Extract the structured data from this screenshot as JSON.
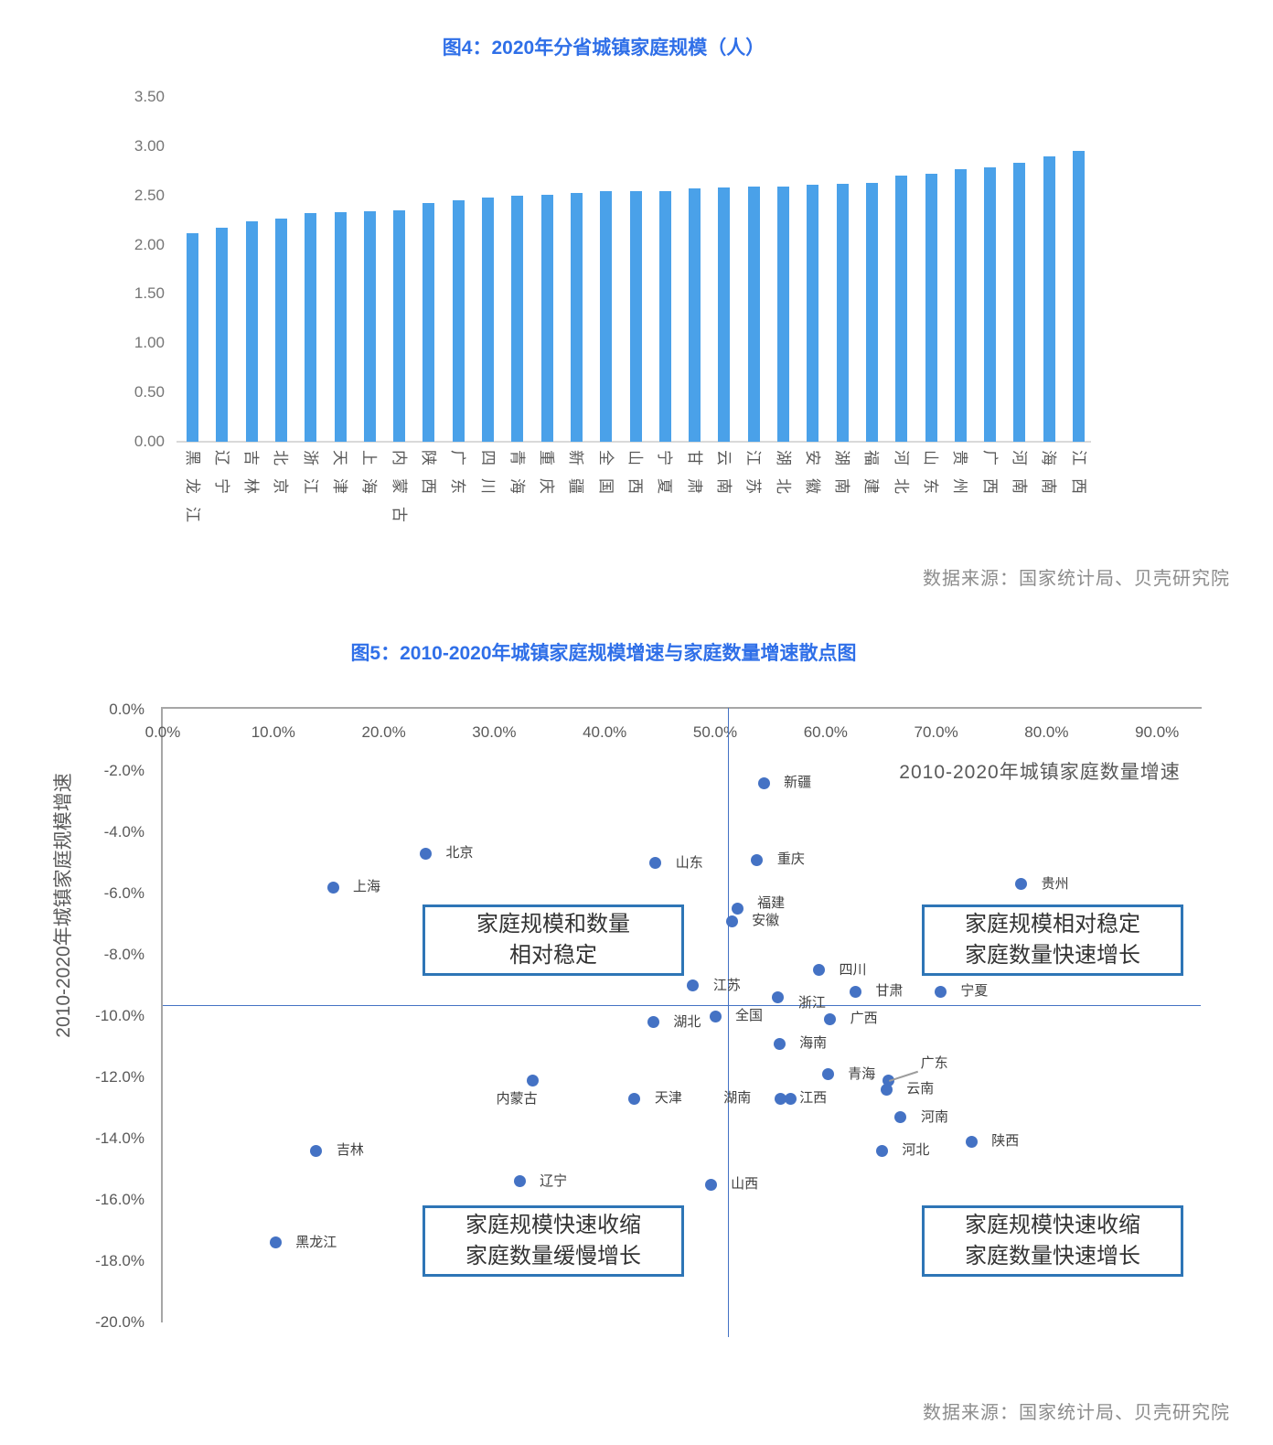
{
  "page": {
    "background": "#FFFFFF"
  },
  "chart_data": [
    {
      "id": "fig4",
      "type": "bar",
      "title": "图4：2020年分省城镇家庭规模（人）",
      "source": "数据来源：国家统计局、贝壳研究院",
      "bar_color": "#4AA1E9",
      "grid": false,
      "ylim": [
        0,
        3.5
      ],
      "yticks": [
        {
          "label": "3.50",
          "value": 3.5
        },
        {
          "label": "3.00",
          "value": 3.0
        },
        {
          "label": "2.50",
          "value": 2.5
        },
        {
          "label": "2.00",
          "value": 2.0
        },
        {
          "label": "1.50",
          "value": 1.5
        },
        {
          "label": "1.00",
          "value": 1.0
        },
        {
          "label": "0.50",
          "value": 0.5
        },
        {
          "label": "0.00",
          "value": 0.0
        }
      ],
      "categories": [
        "黑龙江",
        "辽宁",
        "吉林",
        "北京",
        "浙江",
        "天津",
        "上海",
        "内蒙古",
        "陕西",
        "广东",
        "四川",
        "青海",
        "重庆",
        "新疆",
        "全国",
        "山西",
        "宁夏",
        "甘肃",
        "云南",
        "江苏",
        "湖北",
        "安徽",
        "湖南",
        "福建",
        "河北",
        "山东",
        "贵州",
        "广西",
        "河南",
        "海南",
        "江西"
      ],
      "values": [
        2.12,
        2.17,
        2.24,
        2.27,
        2.32,
        2.33,
        2.34,
        2.35,
        2.42,
        2.45,
        2.48,
        2.5,
        2.51,
        2.53,
        2.54,
        2.54,
        2.54,
        2.57,
        2.58,
        2.59,
        2.59,
        2.61,
        2.62,
        2.63,
        2.7,
        2.72,
        2.77,
        2.79,
        2.83,
        2.9,
        2.95
      ]
    },
    {
      "id": "fig5",
      "type": "scatter",
      "title": "图5：2010-2020年城镇家庭规模增速与家庭数量增速散点图",
      "source": "数据来源：国家统计局、贝壳研究院",
      "xlabel": "2010-2020年城镇家庭数量增速",
      "ylabel": "2010-2020年城镇家庭规模增速",
      "point_color": "#4472C4",
      "box_border_color": "#2E75B6",
      "grid": false,
      "xlim": [
        0,
        94
      ],
      "ylim": [
        -20.5,
        0
      ],
      "xticks": [
        {
          "label": "0.0%",
          "value": 0
        },
        {
          "label": "10.0%",
          "value": 10
        },
        {
          "label": "20.0%",
          "value": 20
        },
        {
          "label": "30.0%",
          "value": 30
        },
        {
          "label": "40.0%",
          "value": 40
        },
        {
          "label": "50.0%",
          "value": 50
        },
        {
          "label": "60.0%",
          "value": 60
        },
        {
          "label": "70.0%",
          "value": 70
        },
        {
          "label": "80.0%",
          "value": 80
        },
        {
          "label": "90.0%",
          "value": 90
        }
      ],
      "yticks": [
        {
          "label": "0.0%",
          "value": 0
        },
        {
          "label": "-2.0%",
          "value": -2
        },
        {
          "label": "-4.0%",
          "value": -4
        },
        {
          "label": "-6.0%",
          "value": -6
        },
        {
          "label": "-8.0%",
          "value": -8
        },
        {
          "label": "-10.0%",
          "value": -10
        },
        {
          "label": "-12.0%",
          "value": -12
        },
        {
          "label": "-14.0%",
          "value": -14
        },
        {
          "label": "-16.0%",
          "value": -16
        },
        {
          "label": "-18.0%",
          "value": -18
        },
        {
          "label": "-20.0%",
          "value": -20
        }
      ],
      "reference_lines": {
        "vertical_x": 51.2,
        "horizontal_y": -9.65
      },
      "points": [
        {
          "name": "新疆",
          "x": 54.4,
          "y": -2.4
        },
        {
          "name": "北京",
          "x": 23.8,
          "y": -4.7
        },
        {
          "name": "重庆",
          "x": 53.8,
          "y": -4.9
        },
        {
          "name": "山东",
          "x": 44.6,
          "y": -5.0
        },
        {
          "name": "贵州",
          "x": 77.7,
          "y": -5.7
        },
        {
          "name": "上海",
          "x": 15.4,
          "y": -5.8
        },
        {
          "name": "福建",
          "x": 52.0,
          "y": -6.5,
          "label_pos": "right-up"
        },
        {
          "name": "安徽",
          "x": 51.5,
          "y": -6.9
        },
        {
          "name": "四川",
          "x": 59.4,
          "y": -8.5
        },
        {
          "name": "江苏",
          "x": 48.0,
          "y": -9.0
        },
        {
          "name": "甘肃",
          "x": 62.7,
          "y": -9.2
        },
        {
          "name": "宁夏",
          "x": 70.4,
          "y": -9.2
        },
        {
          "name": "浙江",
          "x": 55.7,
          "y": -9.4,
          "label_pos": "right-down"
        },
        {
          "name": "全国",
          "x": 50.0,
          "y": -10.0
        },
        {
          "name": "广西",
          "x": 60.4,
          "y": -10.1
        },
        {
          "name": "湖北",
          "x": 44.4,
          "y": -10.2
        },
        {
          "name": "海南",
          "x": 55.8,
          "y": -10.9
        },
        {
          "name": "青海",
          "x": 60.2,
          "y": -11.9
        },
        {
          "name": "内蒙古",
          "x": 33.5,
          "y": -12.1,
          "label_pos": "below-left"
        },
        {
          "name": "广东",
          "x": 65.7,
          "y": -12.1,
          "label_pos": "callout"
        },
        {
          "name": "云南",
          "x": 65.5,
          "y": -12.4
        },
        {
          "name": "天津",
          "x": 42.7,
          "y": -12.7
        },
        {
          "name": "湖南",
          "x": 55.9,
          "y": -12.7,
          "label_pos": "left"
        },
        {
          "name": "江西",
          "x": 56.8,
          "y": -12.7,
          "label_pos": "right-tight"
        },
        {
          "name": "河南",
          "x": 66.8,
          "y": -13.3
        },
        {
          "name": "陕西",
          "x": 73.2,
          "y": -14.1
        },
        {
          "name": "河北",
          "x": 65.1,
          "y": -14.4
        },
        {
          "name": "吉林",
          "x": 13.9,
          "y": -14.4
        },
        {
          "name": "辽宁",
          "x": 32.3,
          "y": -15.4
        },
        {
          "name": "山西",
          "x": 49.6,
          "y": -15.5
        },
        {
          "name": "黑龙江",
          "x": 10.2,
          "y": -17.4
        }
      ],
      "quadrant_labels": [
        {
          "position": "top-left",
          "lines": [
            "家庭规模和数量",
            "相对稳定"
          ]
        },
        {
          "position": "top-right",
          "lines": [
            "家庭规模相对稳定",
            "家庭数量快速增长"
          ]
        },
        {
          "position": "bottom-left",
          "lines": [
            "家庭规模快速收缩",
            "家庭数量缓慢增长"
          ]
        },
        {
          "position": "bottom-right",
          "lines": [
            "家庭规模快速收缩",
            "家庭数量快速增长"
          ]
        }
      ]
    }
  ]
}
